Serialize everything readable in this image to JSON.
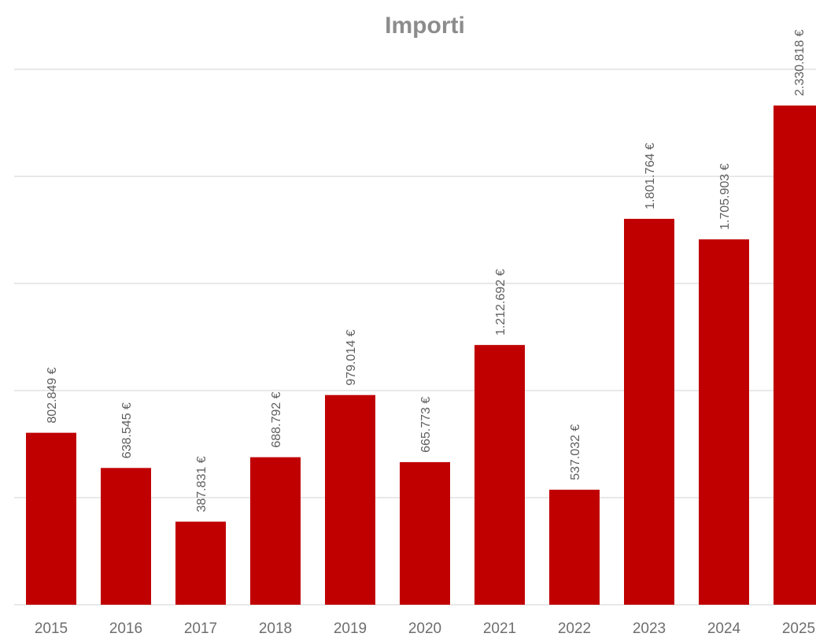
{
  "chart_data": {
    "type": "bar",
    "title": "Importi",
    "xlabel": "",
    "ylabel": "",
    "categories": [
      "2015",
      "2016",
      "2017",
      "2018",
      "2019",
      "2020",
      "2021",
      "2022",
      "2023",
      "2024",
      "2025"
    ],
    "values": [
      802849,
      638545,
      387831,
      688792,
      979014,
      665773,
      1212692,
      537032,
      1801764,
      1705903,
      2330818
    ],
    "data_labels": [
      "802.849 €",
      "638.545 €",
      "387.831 €",
      "688.792 €",
      "979.014 €",
      "665.773 €",
      "1.212.692 €",
      "537.032 €",
      "1.801.764 €",
      "1.705.903 €",
      "2.330.818 €"
    ],
    "ylim": [
      0,
      2500000
    ],
    "grid": true,
    "legend": "none",
    "bar_color": "#c00000"
  }
}
